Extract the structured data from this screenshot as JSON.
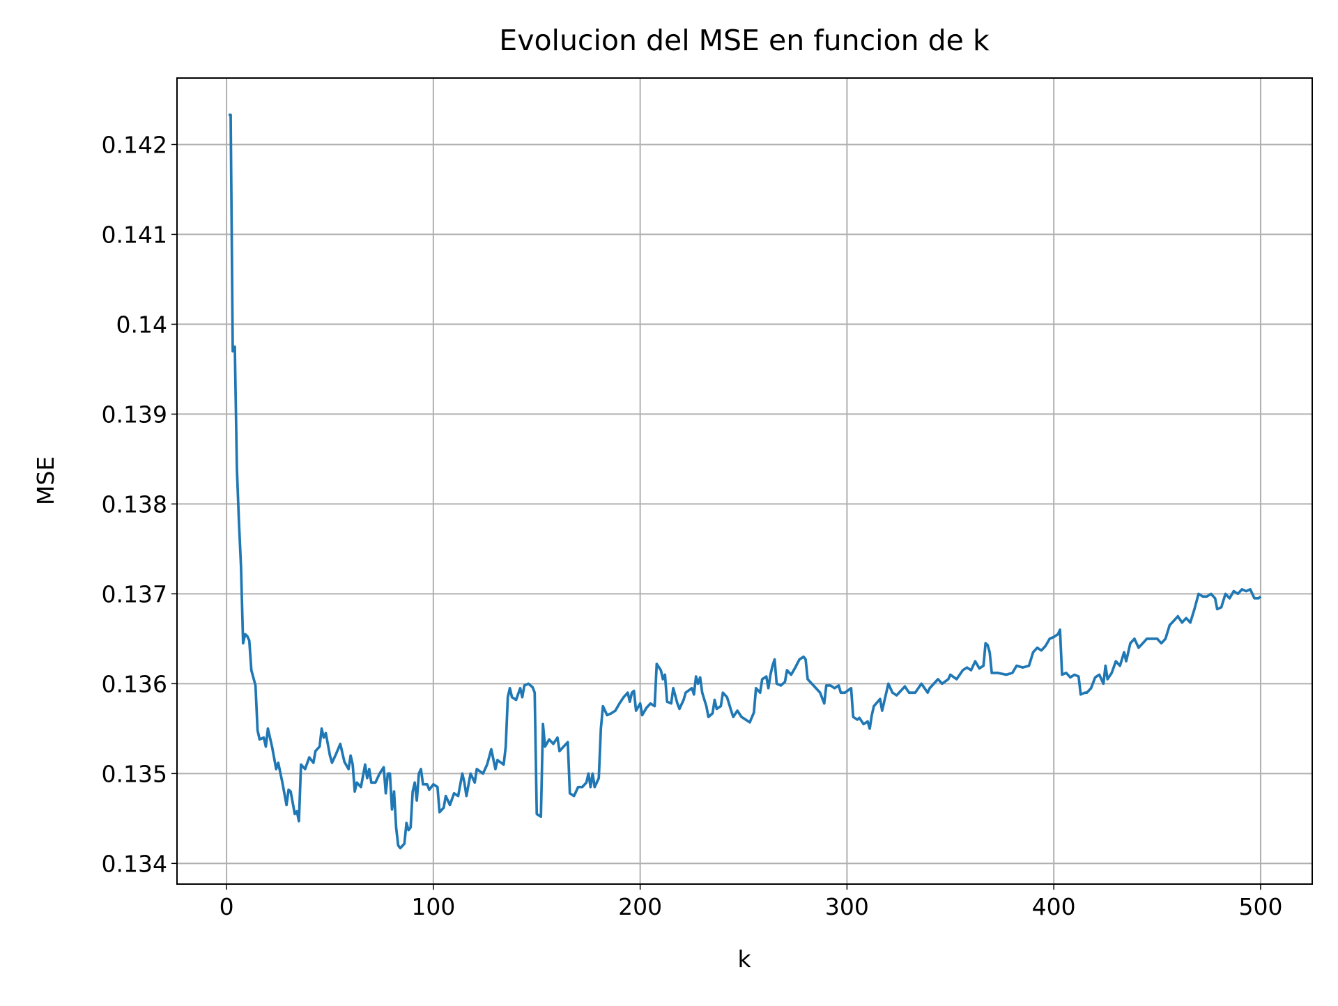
{
  "chart_data": {
    "type": "line",
    "title": "Evolucion del MSE en funcion de k",
    "x_label": "k",
    "y_label": "MSE",
    "x": [
      1,
      2,
      3,
      4,
      5,
      6,
      7,
      8,
      9,
      10,
      11,
      12,
      14,
      15,
      16,
      18,
      19,
      20,
      22,
      24,
      25,
      27,
      29,
      30,
      31,
      33,
      34,
      35,
      36,
      38,
      40,
      42,
      43,
      45,
      46,
      47,
      48,
      50,
      51,
      53,
      55,
      57,
      59,
      60,
      61,
      62,
      63,
      65,
      67,
      68,
      69,
      70,
      72,
      74,
      76,
      77,
      78,
      79,
      80,
      81,
      82,
      83,
      84,
      86,
      87,
      88,
      89,
      90,
      91,
      92,
      93,
      94,
      95,
      97,
      98,
      100,
      102,
      103,
      105,
      106,
      108,
      110,
      112,
      114,
      115,
      116,
      118,
      120,
      121,
      124,
      126,
      128,
      130,
      131,
      134,
      135,
      136,
      137,
      138,
      140,
      142,
      143,
      144,
      146,
      148,
      149,
      150,
      152,
      153,
      154,
      156,
      158,
      160,
      161,
      163,
      165,
      166,
      168,
      170,
      172,
      174,
      175,
      176,
      177,
      178,
      180,
      181,
      182,
      184,
      186,
      188,
      190,
      192,
      194,
      195,
      196,
      197,
      198,
      200,
      201,
      203,
      205,
      207,
      208,
      210,
      211,
      212,
      213,
      215,
      216,
      218,
      219,
      221,
      222,
      225,
      226,
      227,
      228,
      229,
      230,
      232,
      233,
      235,
      236,
      237,
      239,
      240,
      242,
      244,
      245,
      247,
      249,
      251,
      253,
      255,
      256,
      258,
      259,
      261,
      262,
      263,
      264,
      265,
      266,
      268,
      270,
      271,
      273,
      275,
      277,
      279,
      280,
      281,
      283,
      285,
      287,
      289,
      290,
      292,
      294,
      296,
      297,
      299,
      302,
      303,
      305,
      306,
      308,
      310,
      311,
      312,
      313,
      316,
      317,
      319,
      320,
      322,
      324,
      328,
      330,
      333,
      336,
      339,
      340,
      344,
      346,
      349,
      350,
      353,
      356,
      358,
      360,
      362,
      364,
      366,
      367,
      368,
      369,
      370,
      373,
      377,
      380,
      382,
      385,
      388,
      390,
      392,
      394,
      396,
      398,
      400,
      402,
      403,
      404,
      406,
      408,
      410,
      412,
      413,
      415,
      416,
      418,
      420,
      422,
      424,
      425,
      426,
      428,
      430,
      432,
      434,
      435,
      437,
      439,
      441,
      443,
      445,
      448,
      450,
      452,
      454,
      456,
      458,
      460,
      462,
      464,
      466,
      468,
      470,
      472,
      474,
      476,
      478,
      479,
      481,
      483,
      485,
      487,
      489,
      491,
      493,
      495,
      497,
      499,
      500
    ],
    "series": [
      {
        "name": "MSE",
        "color": "#1f77b4",
        "values": [
          0.14233,
          0.14233,
          0.1397,
          0.13975,
          0.1384,
          0.1378,
          0.1373,
          0.13645,
          0.13655,
          0.13653,
          0.13648,
          0.13615,
          0.13598,
          0.13548,
          0.13538,
          0.1354,
          0.1353,
          0.1355,
          0.1353,
          0.13505,
          0.13512,
          0.1349,
          0.13465,
          0.13482,
          0.1348,
          0.13455,
          0.13458,
          0.13447,
          0.1351,
          0.13505,
          0.13518,
          0.13512,
          0.13525,
          0.1353,
          0.1355,
          0.1354,
          0.13545,
          0.1352,
          0.13512,
          0.13522,
          0.13533,
          0.13513,
          0.13505,
          0.1352,
          0.1351,
          0.1348,
          0.1349,
          0.13485,
          0.1351,
          0.13495,
          0.13505,
          0.1349,
          0.1349,
          0.135,
          0.13507,
          0.13478,
          0.135,
          0.135,
          0.1346,
          0.1348,
          0.1344,
          0.1342,
          0.13417,
          0.13422,
          0.13445,
          0.13437,
          0.1344,
          0.1348,
          0.1349,
          0.1347,
          0.135,
          0.13505,
          0.13488,
          0.13488,
          0.13482,
          0.13488,
          0.13485,
          0.13457,
          0.13462,
          0.13475,
          0.13465,
          0.13478,
          0.13475,
          0.135,
          0.1349,
          0.13475,
          0.135,
          0.1349,
          0.13505,
          0.135,
          0.1351,
          0.13527,
          0.13505,
          0.13515,
          0.1351,
          0.1353,
          0.13585,
          0.13595,
          0.13585,
          0.13582,
          0.13595,
          0.13585,
          0.13598,
          0.136,
          0.13596,
          0.1359,
          0.13455,
          0.13452,
          0.13555,
          0.1353,
          0.13538,
          0.13533,
          0.1354,
          0.13525,
          0.1353,
          0.13535,
          0.13478,
          0.13475,
          0.13485,
          0.13485,
          0.1349,
          0.135,
          0.13485,
          0.135,
          0.13485,
          0.13495,
          0.1355,
          0.13575,
          0.13565,
          0.13567,
          0.1357,
          0.13578,
          0.13585,
          0.1359,
          0.1358,
          0.1359,
          0.13592,
          0.1357,
          0.13578,
          0.13565,
          0.13573,
          0.13578,
          0.13575,
          0.13622,
          0.13615,
          0.13605,
          0.1361,
          0.1358,
          0.13578,
          0.13595,
          0.13578,
          0.13572,
          0.13582,
          0.1359,
          0.13595,
          0.13588,
          0.13608,
          0.136,
          0.13607,
          0.1359,
          0.13575,
          0.13563,
          0.13567,
          0.13582,
          0.13572,
          0.13575,
          0.1359,
          0.13585,
          0.1357,
          0.13563,
          0.1357,
          0.13563,
          0.1356,
          0.13557,
          0.13568,
          0.13595,
          0.1359,
          0.13605,
          0.13608,
          0.13595,
          0.1361,
          0.1362,
          0.13627,
          0.136,
          0.13598,
          0.13602,
          0.13615,
          0.1361,
          0.13618,
          0.13627,
          0.1363,
          0.13627,
          0.13605,
          0.136,
          0.13595,
          0.1359,
          0.13578,
          0.13598,
          0.13598,
          0.13595,
          0.13598,
          0.1359,
          0.1359,
          0.13595,
          0.13563,
          0.1356,
          0.13562,
          0.13555,
          0.13558,
          0.1355,
          0.13565,
          0.13575,
          0.13583,
          0.1357,
          0.1359,
          0.136,
          0.1359,
          0.13587,
          0.13597,
          0.1359,
          0.1359,
          0.136,
          0.1359,
          0.13595,
          0.13605,
          0.136,
          0.13605,
          0.1361,
          0.13605,
          0.13615,
          0.13618,
          0.13615,
          0.13625,
          0.13617,
          0.1362,
          0.13645,
          0.13643,
          0.13635,
          0.13612,
          0.13612,
          0.1361,
          0.13612,
          0.1362,
          0.13618,
          0.1362,
          0.13635,
          0.1364,
          0.13637,
          0.13642,
          0.1365,
          0.13652,
          0.13655,
          0.1366,
          0.1361,
          0.13612,
          0.13607,
          0.1361,
          0.13608,
          0.13588,
          0.1359,
          0.1359,
          0.13595,
          0.13607,
          0.1361,
          0.136,
          0.1362,
          0.13605,
          0.13612,
          0.13625,
          0.1362,
          0.13635,
          0.13625,
          0.13645,
          0.1365,
          0.1364,
          0.13645,
          0.1365,
          0.1365,
          0.1365,
          0.13645,
          0.1365,
          0.13665,
          0.1367,
          0.13675,
          0.13668,
          0.13673,
          0.13668,
          0.13683,
          0.137,
          0.13697,
          0.13697,
          0.137,
          0.13695,
          0.13683,
          0.13685,
          0.137,
          0.13695,
          0.13703,
          0.137,
          0.13705,
          0.13703,
          0.13705,
          0.13695,
          0.13695,
          0.13697
        ]
      }
    ],
    "xlim": [
      -23.95,
      524.95
    ],
    "ylim": [
      0.13377,
      0.14274
    ],
    "xticks": [
      0,
      100,
      200,
      300,
      400,
      500
    ],
    "yticks": [
      0.134,
      0.135,
      0.136,
      0.137,
      0.138,
      0.139,
      0.14,
      0.141,
      0.142
    ],
    "grid": true
  }
}
